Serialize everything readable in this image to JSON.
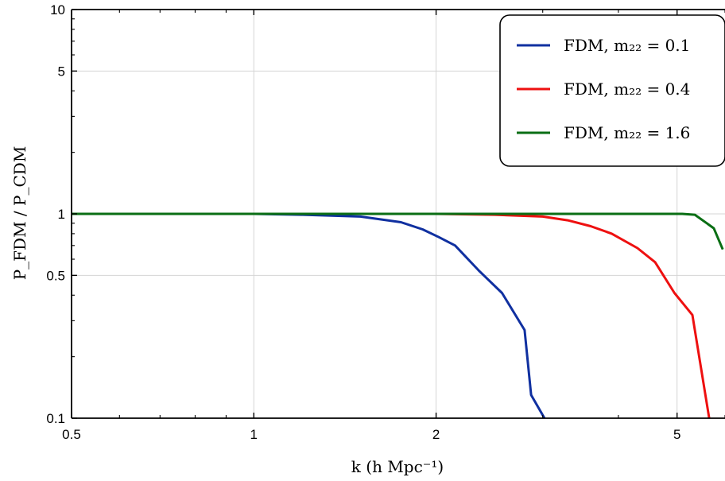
{
  "chart_data": {
    "type": "line",
    "xlabel": "k  (h Mpc⁻¹)",
    "ylabel": "P_FDM / P_CDM",
    "x_scale": "log",
    "y_scale": "log",
    "xlim": [
      0.5,
      6.0
    ],
    "ylim": [
      0.1,
      10
    ],
    "x_ticks": [
      {
        "value": 0.5,
        "label": "0.5"
      },
      {
        "value": 1,
        "label": "1"
      },
      {
        "value": 2,
        "label": "2"
      },
      {
        "value": 5,
        "label": "5"
      }
    ],
    "y_ticks": [
      {
        "value": 0.1,
        "label": "0.1"
      },
      {
        "value": 0.5,
        "label": "0.5"
      },
      {
        "value": 1,
        "label": "1"
      },
      {
        "value": 5,
        "label": "5"
      },
      {
        "value": 10,
        "label": "10"
      }
    ],
    "grid": true,
    "legend_position": "top-right",
    "series": [
      {
        "name": "FDM, m₂₂ = 0.1",
        "color": "#1030a0",
        "points": [
          [
            0.5,
            1.0
          ],
          [
            0.8,
            1.0
          ],
          [
            1.0,
            1.0
          ],
          [
            1.2,
            0.99
          ],
          [
            1.5,
            0.97
          ],
          [
            1.75,
            0.91
          ],
          [
            1.9,
            0.84
          ],
          [
            2.02,
            0.77
          ],
          [
            2.15,
            0.7
          ],
          [
            2.35,
            0.53
          ],
          [
            2.57,
            0.41
          ],
          [
            2.8,
            0.27
          ],
          [
            2.87,
            0.13
          ],
          [
            3.02,
            0.1
          ]
        ]
      },
      {
        "name": "FDM, m₂₂ = 0.4",
        "color": "#ee1010",
        "points": [
          [
            0.5,
            1.0
          ],
          [
            1.0,
            1.0
          ],
          [
            2.0,
            1.0
          ],
          [
            2.5,
            0.99
          ],
          [
            3.0,
            0.97
          ],
          [
            3.3,
            0.93
          ],
          [
            3.6,
            0.87
          ],
          [
            3.9,
            0.8
          ],
          [
            4.3,
            0.68
          ],
          [
            4.6,
            0.58
          ],
          [
            4.95,
            0.41
          ],
          [
            5.3,
            0.32
          ],
          [
            5.65,
            0.1
          ]
        ]
      },
      {
        "name": "FDM, m₂₂ = 1.6",
        "color": "#0a6e14",
        "points": [
          [
            0.5,
            1.0
          ],
          [
            1.0,
            1.0
          ],
          [
            2.0,
            1.0
          ],
          [
            4.0,
            1.0
          ],
          [
            5.1,
            1.0
          ],
          [
            5.35,
            0.99
          ],
          [
            5.75,
            0.85
          ],
          [
            5.95,
            0.67
          ]
        ]
      }
    ]
  }
}
